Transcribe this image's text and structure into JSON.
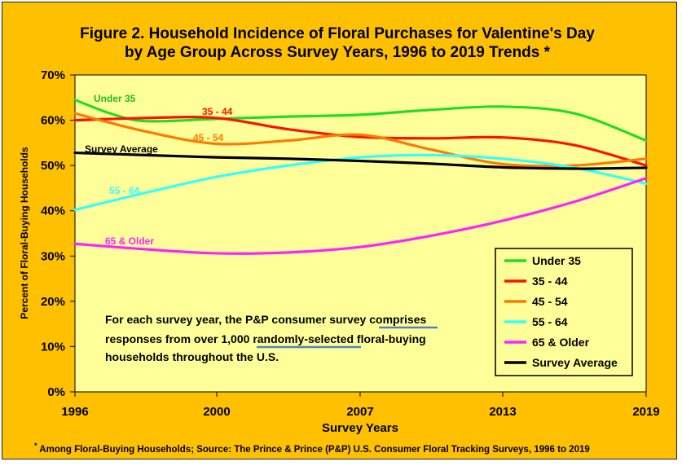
{
  "chart_data": {
    "type": "line",
    "title_line1": "Figure 2.  Household Incidence of Floral Purchases for Valentine's Day",
    "title_line2": "by Age Group Across Survey Years, 1996 to 2019 Trends *",
    "xlabel": "Survey  Years",
    "ylabel": "Percent of Floral-Buying Households",
    "x_ticks": [
      "1996",
      "2000",
      "2007",
      "2013",
      "2019"
    ],
    "y_ticks": [
      "0%",
      "10%",
      "20%",
      "30%",
      "40%",
      "50%",
      "60%",
      "70%"
    ],
    "ylim": [
      0,
      70
    ],
    "series": [
      {
        "name": "Under 35",
        "label": "Under 35",
        "color": "#22dd22",
        "values": [
          [
            0,
            64.5
          ],
          [
            0.25,
            61.5
          ],
          [
            0.5,
            59.8
          ],
          [
            1,
            60.3
          ],
          [
            1.5,
            60.8
          ],
          [
            2,
            61.2
          ],
          [
            2.5,
            62.3
          ],
          [
            3,
            63
          ],
          [
            3.5,
            61.5
          ],
          [
            4,
            55.5
          ]
        ]
      },
      {
        "name": "35 - 44",
        "label": "35 - 44",
        "color": "#ff1100",
        "values": [
          [
            0,
            60
          ],
          [
            0.5,
            60.5
          ],
          [
            1,
            60.5
          ],
          [
            1.5,
            58
          ],
          [
            2,
            56.3
          ],
          [
            2.5,
            56
          ],
          [
            3,
            56.2
          ],
          [
            3.5,
            54.5
          ],
          [
            4,
            50
          ]
        ]
      },
      {
        "name": "45 - 54",
        "label": "45 - 54",
        "color": "#ff7a00",
        "values": [
          [
            0,
            61.5
          ],
          [
            0.5,
            57.5
          ],
          [
            1,
            54.8
          ],
          [
            1.5,
            55.5
          ],
          [
            2,
            56.8
          ],
          [
            2.5,
            53.5
          ],
          [
            3,
            50.3
          ],
          [
            3.5,
            50
          ],
          [
            4,
            51.5
          ]
        ]
      },
      {
        "name": "55 - 64",
        "label": "55 - 64",
        "color": "#33ffff",
        "values": [
          [
            0,
            40.2
          ],
          [
            0.5,
            44
          ],
          [
            1,
            47.5
          ],
          [
            1.5,
            50
          ],
          [
            2,
            51.8
          ],
          [
            2.5,
            52.3
          ],
          [
            3,
            51.5
          ],
          [
            3.5,
            49.5
          ],
          [
            4,
            46
          ]
        ]
      },
      {
        "name": "65 & Older",
        "label": "65 & Older",
        "color": "#ff22ff",
        "values": [
          [
            0,
            32.7
          ],
          [
            0.5,
            31.5
          ],
          [
            1,
            30.6
          ],
          [
            1.5,
            30.8
          ],
          [
            2,
            32
          ],
          [
            2.5,
            34.5
          ],
          [
            3,
            37.8
          ],
          [
            3.5,
            42
          ],
          [
            4,
            47.2
          ]
        ]
      },
      {
        "name": "Survey Average",
        "label": "Survey   Average",
        "color": "#000000",
        "values": [
          [
            0,
            52.8
          ],
          [
            0.5,
            52.3
          ],
          [
            1,
            51.8
          ],
          [
            1.5,
            51.5
          ],
          [
            2,
            51
          ],
          [
            2.5,
            50.4
          ],
          [
            3,
            49.6
          ],
          [
            3.5,
            49.3
          ],
          [
            4,
            49.5
          ]
        ]
      }
    ],
    "legend_position": "lower-right",
    "grid": false
  },
  "note": {
    "line1_a": "For each survey year, the P&P consumer survey ",
    "line1_b": "comprises",
    "line2_a": "responses from over 1,000 ",
    "line2_b": "randomly-selected",
    "line2_c": " floral-buying",
    "line3": "households  throughout  the  U.S."
  },
  "footnote": {
    "star": "*",
    "text": " Among  Floral-Buying  Households;   Source:  The  Prince  &  Prince  (P&P)  U.S.  Consumer  Floral  Tracking  Surveys,  1996  to  2019"
  }
}
